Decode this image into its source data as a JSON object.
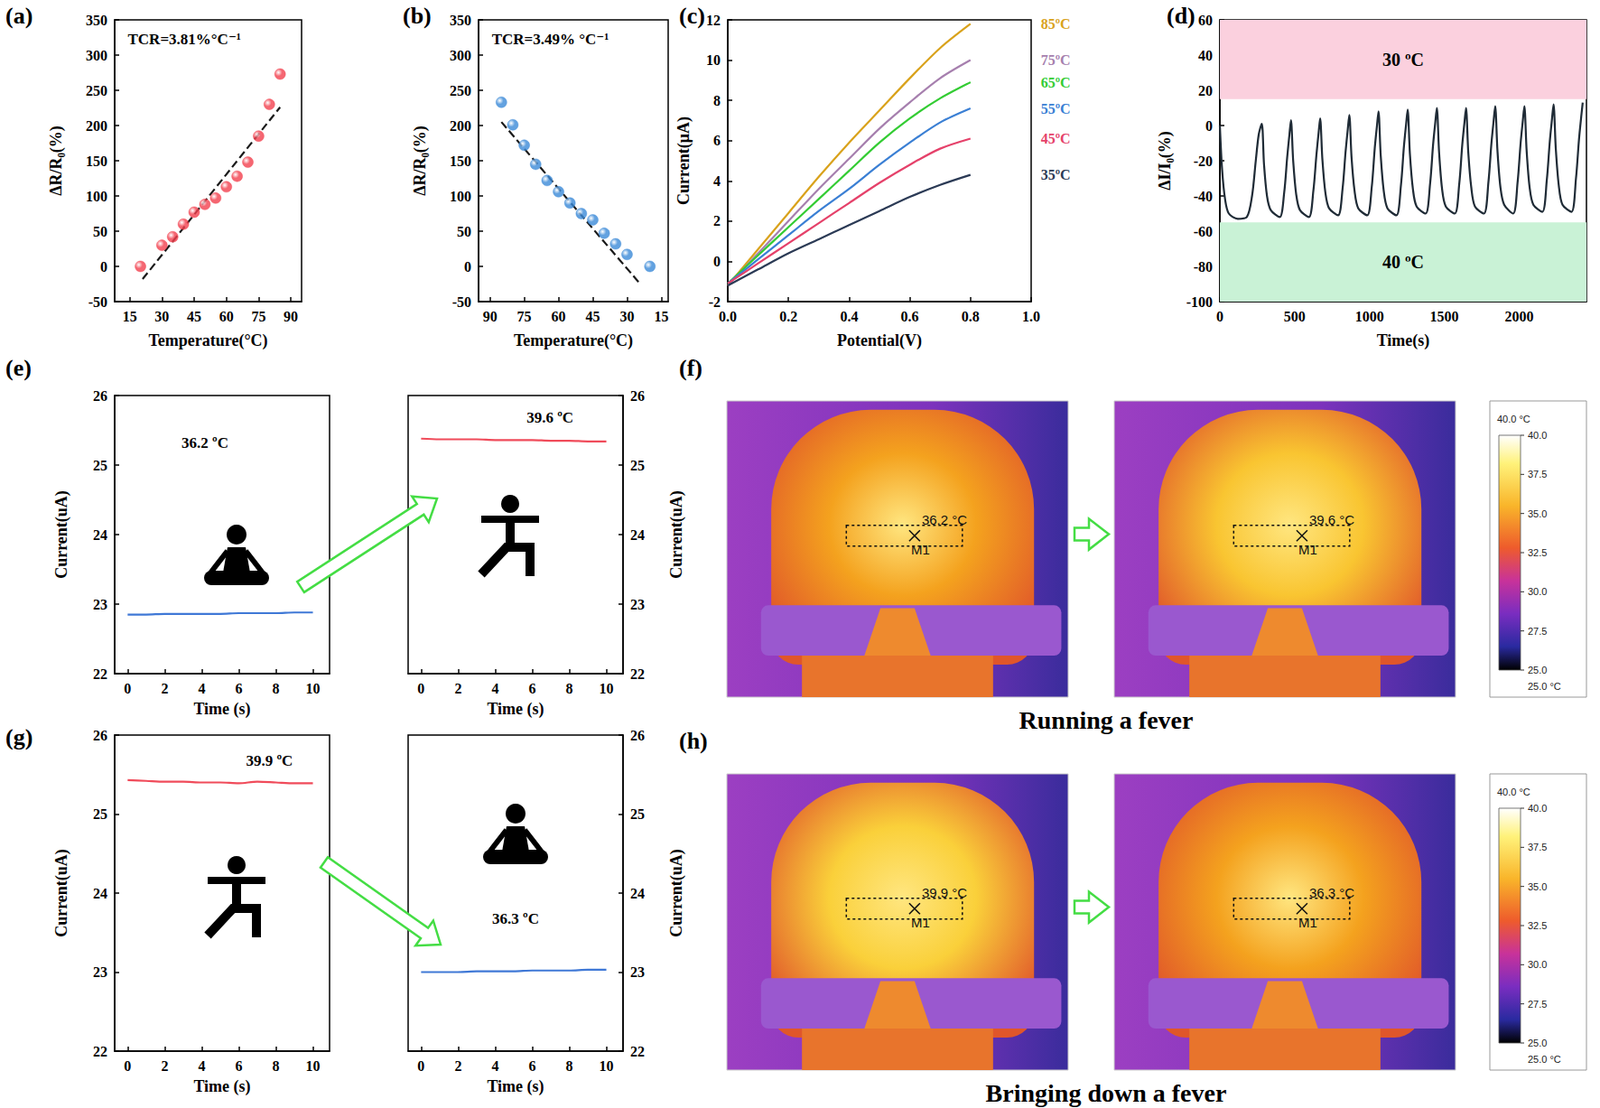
{
  "chart_data": [
    {
      "title": "(a)",
      "type": "scatter",
      "x_label": "Temperature(°C)",
      "y_label": "ΔR/R₀(%)",
      "annotations": [
        "TCR=3.81%°C⁻¹"
      ],
      "xlim": [
        8,
        95
      ],
      "xticks": [
        15,
        30,
        45,
        60,
        75,
        90
      ],
      "ylim": [
        -50,
        350
      ],
      "yticks": [
        -50,
        0,
        50,
        100,
        150,
        200,
        250,
        300,
        350
      ],
      "series": [
        {
          "type": "scatter",
          "marker": "circle",
          "color": "#f2404e",
          "x": [
            20,
            30,
            35,
            40,
            45,
            50,
            55,
            60,
            65,
            70,
            75,
            80,
            85
          ],
          "values": [
            0,
            30,
            42,
            60,
            77,
            88,
            97,
            113,
            128,
            148,
            185,
            230,
            273
          ]
        },
        {
          "type": "line",
          "line_style": "dashed",
          "color": "#1a1a1a",
          "x": [
            21,
            85
          ],
          "values": [
            -18,
            226
          ]
        }
      ]
    },
    {
      "title": "(b)",
      "type": "scatter",
      "x_label": "Temperature(°C)",
      "y_label": "ΔR/R₀(%)",
      "annotations": [
        "TCR=3.49% °C⁻¹"
      ],
      "xlim": [
        95,
        12
      ],
      "xticks": [
        90,
        75,
        60,
        45,
        30,
        15
      ],
      "ylim": [
        -50,
        350
      ],
      "yticks": [
        -50,
        0,
        50,
        100,
        150,
        200,
        250,
        300,
        350
      ],
      "series": [
        {
          "type": "scatter",
          "marker": "circle",
          "color": "#3b8ad8",
          "x": [
            85,
            80,
            75,
            70,
            65,
            60,
            55,
            50,
            45,
            40,
            35,
            30,
            20
          ],
          "values": [
            233,
            201,
            172,
            145,
            122,
            106,
            90,
            75,
            66,
            47,
            32,
            17,
            0
          ]
        },
        {
          "type": "line",
          "line_style": "dashed",
          "color": "#1a1a1a",
          "x": [
            85,
            25
          ],
          "values": [
            205,
            -22
          ]
        }
      ]
    },
    {
      "title": "(c)",
      "type": "line",
      "x_label": "Potential(V)",
      "y_label": "Current(μA)",
      "legend": "right",
      "xlim": [
        0,
        1
      ],
      "xticks": [
        {
          "value": 0,
          "label": "0.0"
        },
        0.2,
        0.4,
        0.6,
        0.8,
        {
          "value": 1,
          "label": "1.0"
        }
      ],
      "ylim": [
        -2,
        12
      ],
      "yticks": [
        -2,
        0,
        2,
        4,
        6,
        8,
        10,
        12
      ],
      "x": [
        0,
        0.1,
        0.2,
        0.3,
        0.4,
        0.5,
        0.6,
        0.7,
        0.8
      ],
      "series": [
        {
          "name": "85ºC",
          "color": "#d9a21b",
          "values": [
            -1.2,
            0.6,
            2.4,
            4.2,
            5.9,
            7.5,
            9.1,
            10.6,
            11.8
          ]
        },
        {
          "name": "75ºC",
          "color": "#a67fae",
          "values": [
            -1.2,
            0.4,
            2.0,
            3.6,
            5.1,
            6.6,
            7.9,
            9.1,
            10.0
          ]
        },
        {
          "name": "65ºC",
          "color": "#33cc33",
          "values": [
            -1.1,
            0.3,
            1.7,
            3.1,
            4.5,
            5.9,
            7.1,
            8.1,
            8.9
          ]
        },
        {
          "name": "55ºC",
          "color": "#3a7fd4",
          "values": [
            -1.1,
            0.1,
            1.3,
            2.5,
            3.6,
            4.8,
            5.9,
            6.9,
            7.6
          ]
        },
        {
          "name": "45ºC",
          "color": "#e5416a",
          "values": [
            -1.1,
            -0.1,
            0.9,
            1.9,
            2.9,
            3.9,
            4.8,
            5.6,
            6.1
          ]
        },
        {
          "name": "35ºC",
          "color": "#2b3a55",
          "values": [
            -1.2,
            -0.4,
            0.4,
            1.1,
            1.8,
            2.5,
            3.2,
            3.8,
            4.3
          ]
        }
      ]
    },
    {
      "title": "(d)",
      "type": "line",
      "x_label": "Time(s)",
      "y_label": "ΔI/I₀(%)",
      "xlim": [
        0,
        2450
      ],
      "xticks": [
        0,
        500,
        1000,
        1500,
        2000
      ],
      "ylim": [
        -100,
        60
      ],
      "yticks": [
        -100,
        -80,
        -60,
        -40,
        -20,
        0,
        20,
        40,
        60
      ],
      "bands": [
        {
          "from": 15,
          "to": 60,
          "label": "30 ºC",
          "color": "#fbd0de"
        },
        {
          "from": -100,
          "to": -55,
          "label": "40 ºC",
          "color": "#c9f2d6"
        }
      ],
      "series": [
        {
          "color": "#1f2b36",
          "x": [
            0,
            15,
            35,
            60,
            120,
            180,
            215,
            240,
            260,
            280,
            295,
            315,
            340,
            400,
            430,
            450,
            465,
            475,
            490,
            510,
            535,
            595,
            625,
            645,
            660,
            670,
            685,
            705,
            730,
            790,
            820,
            840,
            855,
            865,
            880,
            900,
            925,
            985,
            1015,
            1035,
            1050,
            1060,
            1075,
            1095,
            1120,
            1180,
            1210,
            1230,
            1245,
            1255,
            1270,
            1290,
            1315,
            1375,
            1405,
            1425,
            1440,
            1450,
            1465,
            1485,
            1510,
            1570,
            1600,
            1620,
            1635,
            1645,
            1660,
            1680,
            1705,
            1765,
            1795,
            1815,
            1830,
            1840,
            1855,
            1875,
            1900,
            1960,
            1990,
            2010,
            2025,
            2035,
            2050,
            2070,
            2095,
            2155,
            2185,
            2205,
            2220,
            2230,
            2245,
            2265,
            2290,
            2350,
            2380,
            2400,
            2415,
            2425
          ],
          "values": [
            0,
            -25,
            -42,
            -50,
            -53,
            -52,
            -40,
            -20,
            -5,
            1,
            -22,
            -40,
            -48,
            -52,
            -38,
            -18,
            -5,
            3,
            -20,
            -39,
            -48,
            -52,
            -37,
            -17,
            -4,
            4,
            -19,
            -38,
            -47,
            -51,
            -36,
            -15,
            -2,
            6,
            -18,
            -37,
            -47,
            -51,
            -35,
            -13,
            0,
            8,
            -17,
            -37,
            -47,
            -51,
            -34,
            -12,
            1,
            9,
            -16,
            -36,
            -46,
            -50,
            -33,
            -11,
            2,
            10,
            -15,
            -36,
            -46,
            -50,
            -33,
            -11,
            2,
            10,
            -15,
            -35,
            -46,
            -50,
            -32,
            -10,
            3,
            11,
            -14,
            -35,
            -45,
            -50,
            -32,
            -10,
            3,
            11,
            -14,
            -35,
            -45,
            -49,
            -31,
            -9,
            4,
            12,
            -13,
            -34,
            -45,
            -49,
            -30,
            -8,
            5,
            13
          ]
        }
      ]
    },
    {
      "title": "(e)",
      "type": "line",
      "x_label": "Time (s)",
      "y_label": "Current(uA)",
      "annotations": [
        "36.2 ºC"
      ],
      "xlim": [
        -0.7,
        10.9
      ],
      "xticks": [
        0,
        2,
        4,
        6,
        8,
        10
      ],
      "ylim": [
        22,
        26
      ],
      "yticks": [
        22,
        23,
        24,
        25,
        26
      ],
      "x": [
        0,
        1,
        2,
        3,
        4,
        5,
        6,
        7,
        8,
        9,
        10
      ],
      "series": [
        {
          "color": "#3f78d6",
          "values": [
            22.85,
            22.85,
            22.86,
            22.86,
            22.86,
            22.86,
            22.87,
            22.87,
            22.87,
            22.88,
            22.88
          ]
        }
      ]
    },
    {
      "type": "line",
      "x_label": "Time (s)",
      "y_label": "Current(uA)",
      "annotations": [
        "39.6 ºC"
      ],
      "xlim": [
        -0.7,
        10.9
      ],
      "xticks": [
        0,
        2,
        4,
        6,
        8,
        10
      ],
      "ylim": [
        22,
        26
      ],
      "yticks": [
        22,
        23,
        24,
        25,
        26
      ],
      "x": [
        0,
        1,
        2,
        3,
        4,
        5,
        6,
        7,
        8,
        9,
        10
      ],
      "series": [
        {
          "color": "#f04b5a",
          "values": [
            25.38,
            25.37,
            25.37,
            25.37,
            25.36,
            25.36,
            25.36,
            25.35,
            25.35,
            25.34,
            25.34
          ]
        }
      ]
    },
    {
      "title": "(g)",
      "type": "line",
      "x_label": "Time (s)",
      "y_label": "Current(uA)",
      "annotations": [
        "39.9 ºC"
      ],
      "xlim": [
        -0.7,
        10.9
      ],
      "xticks": [
        0,
        2,
        4,
        6,
        8,
        10
      ],
      "ylim": [
        22,
        26
      ],
      "yticks": [
        22,
        23,
        24,
        25,
        26
      ],
      "x": [
        0,
        1,
        2,
        3,
        4,
        5,
        6,
        7,
        8,
        9,
        10
      ],
      "series": [
        {
          "color": "#f04b5a",
          "values": [
            25.43,
            25.42,
            25.41,
            25.41,
            25.4,
            25.4,
            25.39,
            25.41,
            25.4,
            25.39,
            25.39
          ]
        }
      ]
    },
    {
      "type": "line",
      "x_label": "Time (s)",
      "y_label": "Current(uA)",
      "annotations": [
        "36.3 ºC"
      ],
      "xlim": [
        -0.7,
        10.9
      ],
      "xticks": [
        0,
        2,
        4,
        6,
        8,
        10
      ],
      "ylim": [
        22,
        26
      ],
      "yticks": [
        22,
        23,
        24,
        25,
        26
      ],
      "x": [
        0,
        1,
        2,
        3,
        4,
        5,
        6,
        7,
        8,
        9,
        10
      ],
      "series": [
        {
          "color": "#3f78d6",
          "values": [
            23.0,
            23.0,
            23.0,
            23.01,
            23.01,
            23.01,
            23.02,
            23.02,
            23.02,
            23.03,
            23.03
          ]
        }
      ]
    }
  ],
  "thermal_images": [
    {
      "title": "(f)",
      "caption": "Running a fever",
      "images": [
        {
          "reading": "36.2 °C",
          "marker": "M1",
          "color": "#f4a21e"
        },
        {
          "reading": "39.6 °C",
          "marker": "M1",
          "color": "#f9c531"
        }
      ],
      "colorbar": {
        "range": [
          25,
          40
        ],
        "top_label": "40.0 °C",
        "bottom_label": "25.0 °C",
        "ticks": [
          {
            "value": 40,
            "label": "40.0"
          },
          37.5,
          {
            "value": 35,
            "label": "35.0"
          },
          32.5,
          {
            "value": 30,
            "label": "30.0"
          },
          27.5,
          {
            "value": 25,
            "label": "25.0"
          }
        ]
      }
    },
    {
      "title": "(h)",
      "caption": "Bringing down a fever",
      "images": [
        {
          "reading": "39.9 °C",
          "marker": "M1",
          "color": "#fad03a"
        },
        {
          "reading": "36.3 °C",
          "marker": "M1",
          "color": "#f4a21e"
        }
      ],
      "colorbar": {
        "range": [
          25,
          40
        ],
        "top_label": "40.0 °C",
        "bottom_label": "25.0 °C",
        "ticks": [
          {
            "value": 40,
            "label": "40.0"
          },
          37.5,
          {
            "value": 35,
            "label": "35.0"
          },
          32.5,
          {
            "value": 30,
            "label": "30.0"
          },
          27.5,
          {
            "value": 25,
            "label": "25.0"
          }
        ]
      }
    }
  ]
}
